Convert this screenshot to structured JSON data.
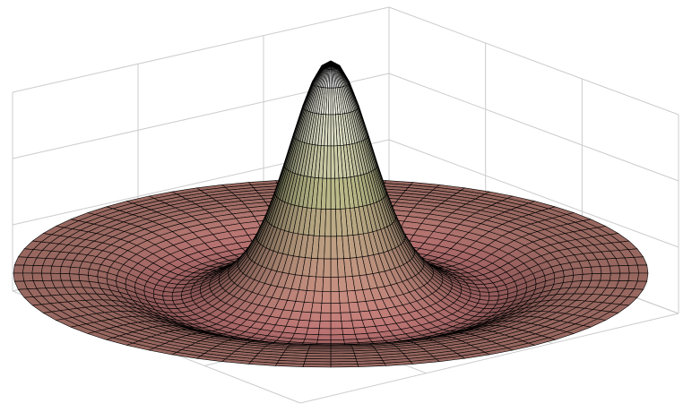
{
  "chart_data": {
    "type": "surface",
    "title": "",
    "xlabel": "",
    "ylabel": "",
    "zlabel": "",
    "grid": true,
    "domain": "circular",
    "radial_profile": {
      "r": [
        0,
        0.1,
        0.2,
        0.3,
        0.4,
        0.5,
        0.6,
        0.7,
        0.8,
        0.9,
        1.0
      ],
      "z": [
        1.0,
        0.73,
        0.29,
        0.05,
        -0.06,
        -0.1,
        -0.08,
        -0.04,
        -0.01,
        0.0,
        0.0
      ]
    },
    "colormap": [
      "#b46e6e",
      "#b8b888",
      "#ffffff"
    ],
    "mesh_color": "#000000",
    "axes_color": "#cccccc"
  }
}
